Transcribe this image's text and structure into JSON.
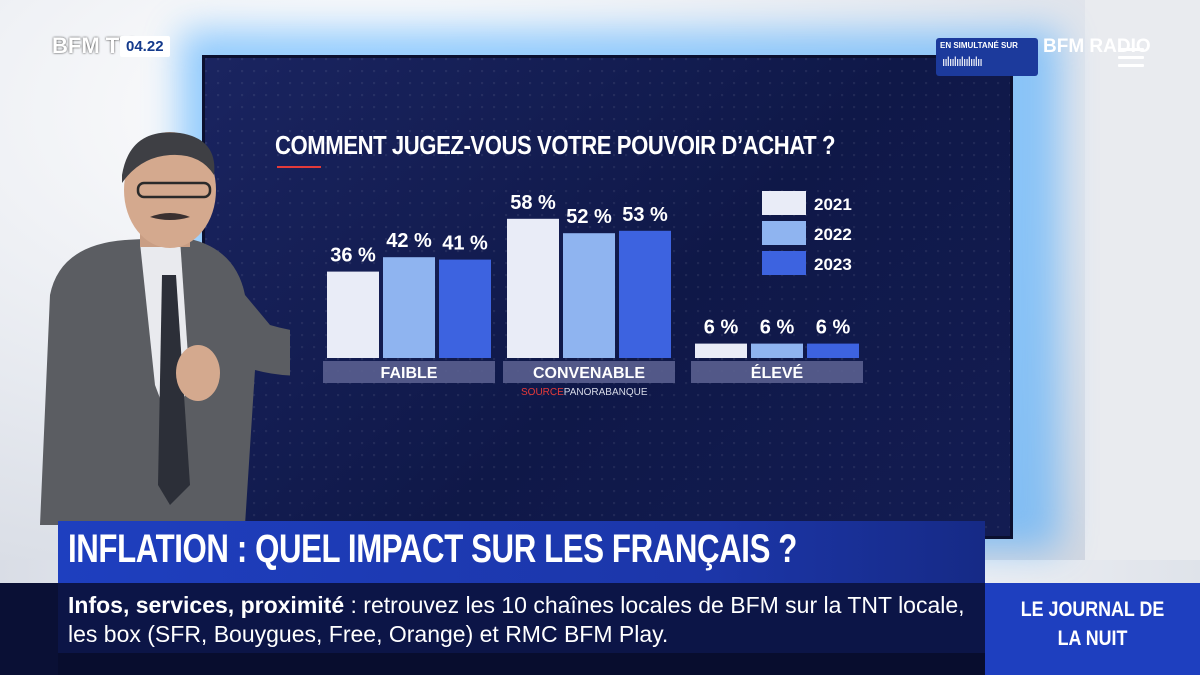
{
  "channel": {
    "logo": "BFM TV.",
    "time": "04.22"
  },
  "simulcast": {
    "label": "EN SIMULTANÉ SUR",
    "wave": "ıılıılıılıılıılıı",
    "brand": "BFM RADIO"
  },
  "chart_data": {
    "type": "bar",
    "title": "COMMENT JUGEZ-VOUS VOTRE POUVOIR D’ACHAT ?",
    "categories": [
      "FAIBLE",
      "CONVENABLE",
      "ÉLEVÉ"
    ],
    "series": [
      {
        "name": "2021",
        "values": [
          36,
          58,
          6
        ],
        "labels": [
          "36 %",
          "58 %",
          "6 %"
        ],
        "color": "#e9ecf7"
      },
      {
        "name": "2022",
        "values": [
          42,
          52,
          6
        ],
        "labels": [
          "42 %",
          "52 %",
          "6 %"
        ],
        "color": "#8fb4f0"
      },
      {
        "name": "2023",
        "values": [
          41,
          53,
          6
        ],
        "labels": [
          "41 %",
          "53 %",
          "6 %"
        ],
        "color": "#3d63e0"
      }
    ],
    "unit": "%",
    "legend": "right",
    "source_label": "SOURCE",
    "source_name": "PANORABANQUE"
  },
  "headline": "INFLATION : QUEL IMPACT SUR LES FRANÇAIS ?",
  "ticker": {
    "bold": "Infos, services, proximité",
    "text": " : retrouvez les 10 chaînes locales de BFM sur la TNT locale, les box (SFR, Bouygues, Free, Orange) et RMC BFM Play."
  },
  "program": "LE JOURNAL DE LA NUIT"
}
